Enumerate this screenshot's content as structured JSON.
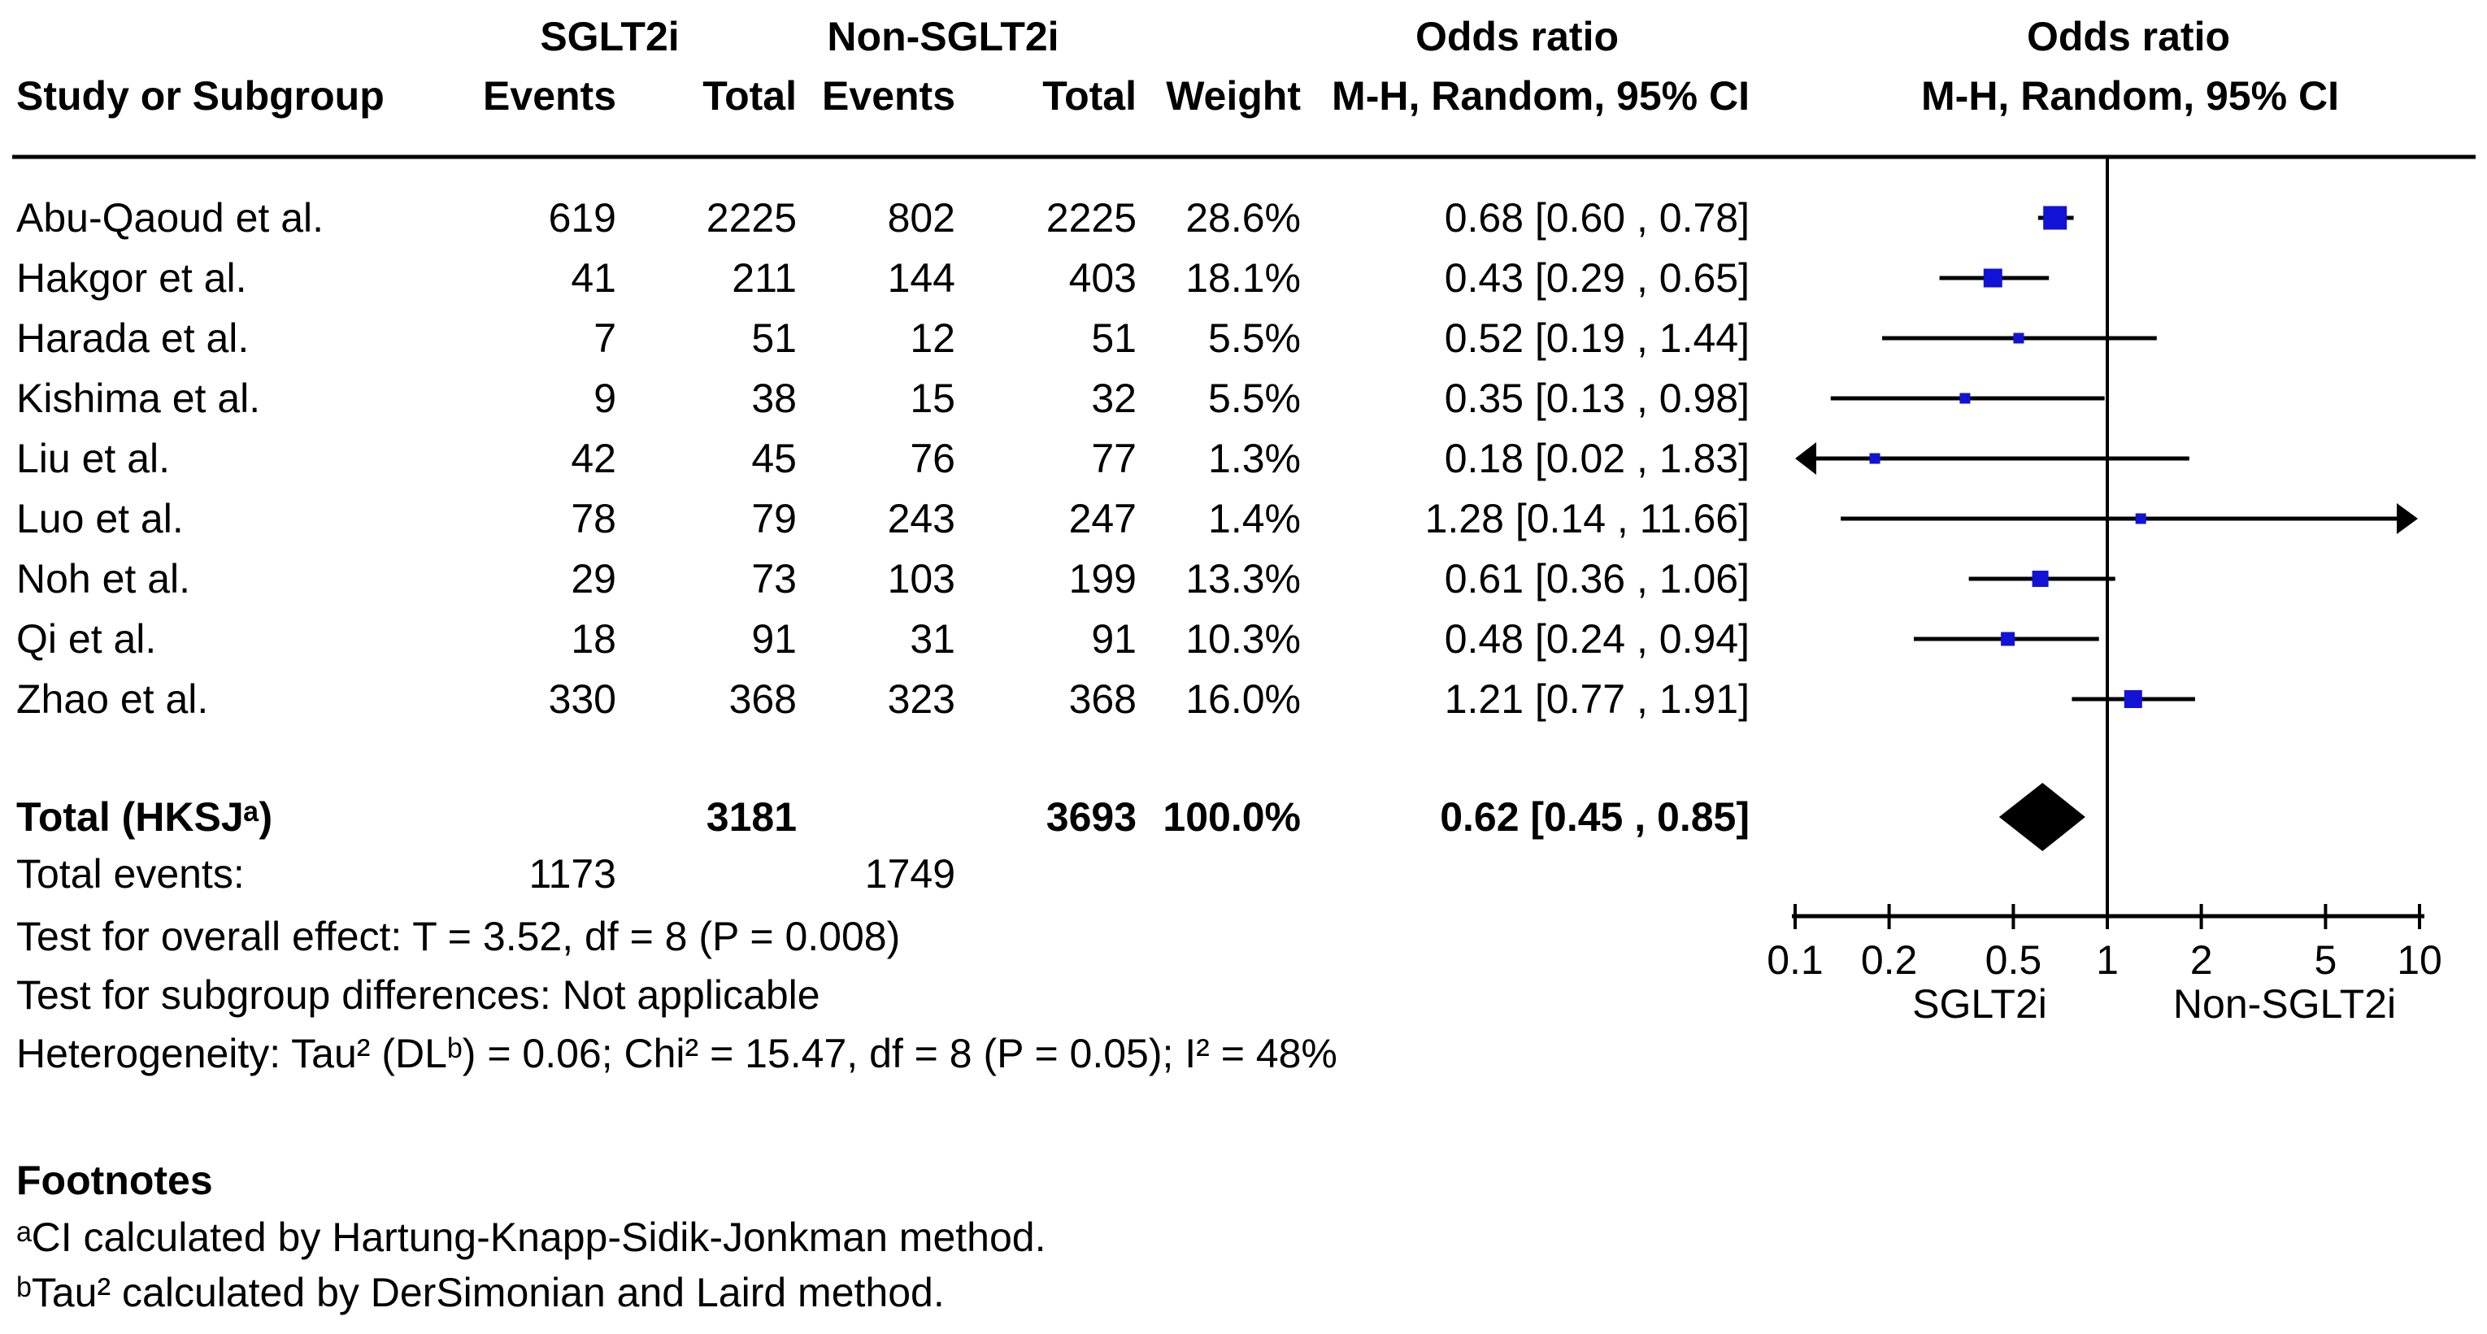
{
  "header": {
    "group1": "SGLT2i",
    "group2": "Non-SGLT2i",
    "odds_ratio_col": "Odds ratio",
    "mh_col": "M-H, Random, 95% CI",
    "odds_ratio_plot": "Odds ratio",
    "mh_plot": "M-H, Random, 95% CI",
    "study": "Study or Subgroup",
    "events1": "Events",
    "total1": "Total",
    "events2": "Events",
    "total2": "Total",
    "weight": "Weight"
  },
  "chart_data": {
    "type": "forest",
    "x_scale": "log",
    "x_ticks": [
      "0.1",
      "0.2",
      "0.5",
      "1",
      "2",
      "5",
      "10"
    ],
    "x_range": [
      0.1,
      10
    ],
    "axis_label_left": "SGLT2i",
    "axis_label_right": "Non-SGLT2i",
    "marker_color": "#1212D6",
    "line_color": "#000000",
    "studies": [
      {
        "name": "Abu-Qaoud et al.",
        "events1": 619,
        "total1": 2225,
        "events2": 802,
        "total2": 2225,
        "weight": "28.6%",
        "weight_value": 28.6,
        "or": 0.68,
        "ci_low": 0.6,
        "ci_high": 0.78,
        "ci_text": "0.68 [0.60 , 0.78]"
      },
      {
        "name": "Hakgor et al.",
        "events1": 41,
        "total1": 211,
        "events2": 144,
        "total2": 403,
        "weight": "18.1%",
        "weight_value": 18.1,
        "or": 0.43,
        "ci_low": 0.29,
        "ci_high": 0.65,
        "ci_text": "0.43 [0.29 , 0.65]"
      },
      {
        "name": "Harada et al.",
        "events1": 7,
        "total1": 51,
        "events2": 12,
        "total2": 51,
        "weight": "5.5%",
        "weight_value": 5.5,
        "or": 0.52,
        "ci_low": 0.19,
        "ci_high": 1.44,
        "ci_text": "0.52 [0.19 , 1.44]"
      },
      {
        "name": "Kishima et al.",
        "events1": 9,
        "total1": 38,
        "events2": 15,
        "total2": 32,
        "weight": "5.5%",
        "weight_value": 5.5,
        "or": 0.35,
        "ci_low": 0.13,
        "ci_high": 0.98,
        "ci_text": "0.35 [0.13 , 0.98]"
      },
      {
        "name": "Liu et al.",
        "events1": 42,
        "total1": 45,
        "events2": 76,
        "total2": 77,
        "weight": "1.3%",
        "weight_value": 1.3,
        "or": 0.18,
        "ci_low": 0.02,
        "ci_high": 1.83,
        "ci_text": "0.18 [0.02 , 1.83]"
      },
      {
        "name": "Luo et al.",
        "events1": 78,
        "total1": 79,
        "events2": 243,
        "total2": 247,
        "weight": "1.4%",
        "weight_value": 1.4,
        "or": 1.28,
        "ci_low": 0.14,
        "ci_high": 11.66,
        "ci_text": "1.28 [0.14 , 11.66]"
      },
      {
        "name": "Noh et al.",
        "events1": 29,
        "total1": 73,
        "events2": 103,
        "total2": 199,
        "weight": "13.3%",
        "weight_value": 13.3,
        "or": 0.61,
        "ci_low": 0.36,
        "ci_high": 1.06,
        "ci_text": "0.61 [0.36 , 1.06]"
      },
      {
        "name": "Qi et al.",
        "events1": 18,
        "total1": 91,
        "events2": 31,
        "total2": 91,
        "weight": "10.3%",
        "weight_value": 10.3,
        "or": 0.48,
        "ci_low": 0.24,
        "ci_high": 0.94,
        "ci_text": "0.48 [0.24 , 0.94]"
      },
      {
        "name": "Zhao et al.",
        "events1": 330,
        "total1": 368,
        "events2": 323,
        "total2": 368,
        "weight": "16.0%",
        "weight_value": 16.0,
        "or": 1.21,
        "ci_low": 0.77,
        "ci_high": 1.91,
        "ci_text": "1.21 [0.77 , 1.91]"
      }
    ],
    "total": {
      "label": "Total (HKSJᵃ)",
      "total1": 3181,
      "total2": 3693,
      "weight": "100.0%",
      "or": 0.62,
      "ci_low": 0.45,
      "ci_high": 0.85,
      "ci_text": "0.62 [0.45 , 0.85]"
    },
    "total_events": {
      "label": "Total events:",
      "events1": 1173,
      "events2": 1749
    }
  },
  "stats": {
    "overall_effect": "Test for overall effect: T = 3.52, df = 8 (P = 0.008)",
    "subgroup_differences": "Test for subgroup differences: Not applicable",
    "heterogeneity": "Heterogeneity: Tau² (DLᵇ) = 0.06; Chi² = 15.47, df = 8 (P = 0.05); I² = 48%"
  },
  "footnotes": {
    "title": "Footnotes",
    "a": "ᵃCI calculated by Hartung-Knapp-Sidik-Jonkman method.",
    "b": "ᵇTau² calculated by DerSimonian and Laird method."
  }
}
